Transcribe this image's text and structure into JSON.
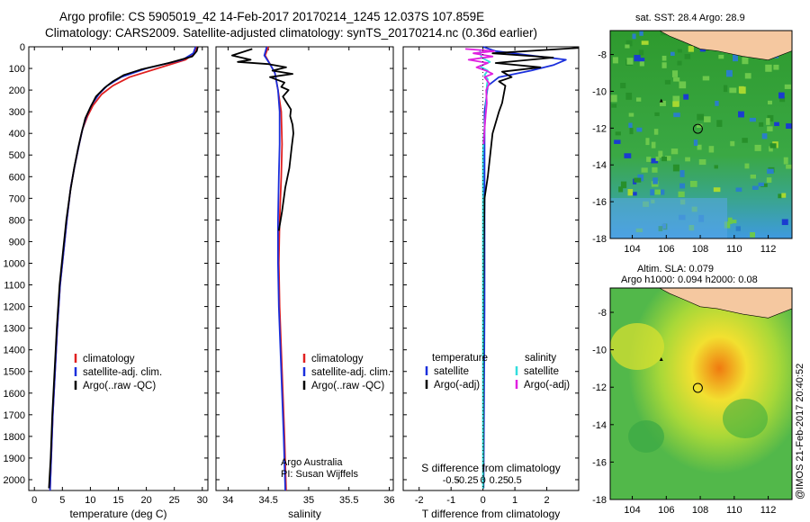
{
  "header": {
    "line1": "Argo profile: CS 5905019_42 14-Feb-2017 20170214_1245 12.037S 107.859E",
    "line2": "Climatology: CARS2009. Satellite-adjusted climatology: synTS_20170214.nc (0.36d earlier)"
  },
  "footer_stamp": "@IMOS 21-Feb-2017 20:40:52",
  "colors": {
    "climatology": "#e02020",
    "satellite": "#1a2fdc",
    "argo": "#000000",
    "salinity_sat": "#33dddd",
    "salinity_argo": "#e020e0",
    "sea": "#3fae3f",
    "land": "#f5c8a0"
  },
  "annotations": {
    "float_owner": "Argo Australia",
    "pi": "PI: Susan Wijffels"
  },
  "maps": {
    "sst": {
      "title": "sat. SST: 28.4 Argo: 28.9",
      "xticks": [
        "104",
        "106",
        "108",
        "110",
        "112"
      ],
      "yticks": [
        "-8",
        "-10",
        "-12",
        "-14",
        "-16",
        "-18"
      ]
    },
    "sla": {
      "title1": "Altim. SLA: 0.079",
      "title2": "Argo h1000: 0.094 h2000: 0.08",
      "xticks": [
        "104",
        "106",
        "108",
        "110",
        "112"
      ],
      "yticks": [
        "-8",
        "-10",
        "-12",
        "-14",
        "-16",
        "-18"
      ]
    }
  },
  "chart_data": [
    {
      "type": "line",
      "panel": "temperature",
      "xlabel": "temperature (deg C)",
      "xlim": [
        -1,
        31
      ],
      "ylim": [
        2050,
        0
      ],
      "xticks": [
        "0",
        "5",
        "10",
        "15",
        "20",
        "25",
        "30"
      ],
      "yticks": [
        "0",
        "100",
        "200",
        "300",
        "400",
        "500",
        "600",
        "700",
        "800",
        "900",
        "1000",
        "1100",
        "1200",
        "1300",
        "1400",
        "1500",
        "1600",
        "1700",
        "1800",
        "1900",
        "2000"
      ],
      "legend": [
        "climatology",
        "satellite-adj. clim.",
        "Argo(..raw -QC)"
      ],
      "series": [
        {
          "name": "climatology",
          "color": "#e02020",
          "points": [
            [
              29,
              0
            ],
            [
              28.6,
              30
            ],
            [
              27,
              60
            ],
            [
              22,
              100
            ],
            [
              17,
              140
            ],
            [
              14,
              180
            ],
            [
              12,
              220
            ],
            [
              10.5,
              270
            ],
            [
              9.5,
              320
            ],
            [
              8.6,
              380
            ],
            [
              8,
              450
            ],
            [
              7.2,
              550
            ],
            [
              6.5,
              650
            ],
            [
              5.8,
              800
            ],
            [
              5.2,
              950
            ],
            [
              4.6,
              1100
            ],
            [
              4.1,
              1300
            ],
            [
              3.7,
              1500
            ],
            [
              3.3,
              1700
            ],
            [
              3,
              1900
            ],
            [
              2.8,
              2050
            ]
          ]
        },
        {
          "name": "satellite-adj. clim.",
          "color": "#1a2fdc",
          "points": [
            [
              28.8,
              0
            ],
            [
              28.4,
              30
            ],
            [
              26.5,
              60
            ],
            [
              20,
              100
            ],
            [
              15.5,
              140
            ],
            [
              13,
              180
            ],
            [
              11.5,
              220
            ],
            [
              10.2,
              270
            ],
            [
              9.3,
              320
            ],
            [
              8.6,
              380
            ],
            [
              8,
              450
            ],
            [
              7.2,
              550
            ],
            [
              6.5,
              650
            ],
            [
              5.8,
              800
            ],
            [
              5.2,
              950
            ],
            [
              4.6,
              1100
            ],
            [
              4.1,
              1300
            ],
            [
              3.7,
              1500
            ],
            [
              3.3,
              1700
            ],
            [
              3,
              1900
            ],
            [
              2.8,
              2050
            ]
          ]
        },
        {
          "name": "Argo(..raw -QC)",
          "color": "#000000",
          "points": [
            [
              29.2,
              0
            ],
            [
              29,
              20
            ],
            [
              28.2,
              45
            ],
            [
              24,
              75
            ],
            [
              19,
              105
            ],
            [
              16,
              130
            ],
            [
              14,
              160
            ],
            [
              12.5,
              190
            ],
            [
              11,
              230
            ],
            [
              10,
              280
            ],
            [
              9.1,
              330
            ],
            [
              8.4,
              400
            ],
            [
              7.8,
              470
            ],
            [
              7.1,
              560
            ],
            [
              6.4,
              670
            ],
            [
              5.7,
              800
            ],
            [
              5.1,
              950
            ],
            [
              4.5,
              1100
            ],
            [
              4,
              1300
            ],
            [
              3.6,
              1500
            ],
            [
              3.2,
              1700
            ],
            [
              2.9,
              1900
            ],
            [
              2.6,
              2040
            ]
          ]
        }
      ]
    },
    {
      "type": "line",
      "panel": "salinity",
      "xlabel": "salinity",
      "xlim": [
        33.85,
        36.05
      ],
      "ylim": [
        2050,
        0
      ],
      "xticks": [
        "34",
        "34.5",
        "35",
        "35.5",
        "36"
      ],
      "legend": [
        "climatology",
        "satellite-adj. clim.",
        "Argo(..raw -QC)"
      ],
      "series": [
        {
          "name": "climatology",
          "color": "#e02020",
          "points": [
            [
              34.5,
              0
            ],
            [
              34.46,
              40
            ],
            [
              34.52,
              80
            ],
            [
              34.58,
              120
            ],
            [
              34.62,
              200
            ],
            [
              34.66,
              300
            ],
            [
              34.67,
              450
            ],
            [
              34.66,
              600
            ],
            [
              34.64,
              800
            ],
            [
              34.63,
              1000
            ],
            [
              34.64,
              1200
            ],
            [
              34.66,
              1400
            ],
            [
              34.68,
              1600
            ],
            [
              34.7,
              1800
            ],
            [
              34.72,
              2050
            ]
          ]
        },
        {
          "name": "satellite-adj. clim.",
          "color": "#1a2fdc",
          "points": [
            [
              34.48,
              0
            ],
            [
              34.45,
              40
            ],
            [
              34.52,
              80
            ],
            [
              34.58,
              120
            ],
            [
              34.62,
              200
            ],
            [
              34.64,
              300
            ],
            [
              34.64,
              450
            ],
            [
              34.63,
              600
            ],
            [
              34.62,
              800
            ],
            [
              34.62,
              1000
            ],
            [
              34.63,
              1200
            ],
            [
              34.65,
              1400
            ],
            [
              34.67,
              1600
            ],
            [
              34.69,
              1800
            ],
            [
              34.71,
              2050
            ]
          ]
        },
        {
          "name": "Argo(..raw -QC)",
          "color": "#000000",
          "points": [
            [
              34.3,
              10
            ],
            [
              34.05,
              40
            ],
            [
              34.28,
              60
            ],
            [
              34.12,
              70
            ],
            [
              34.5,
              80
            ],
            [
              34.72,
              95
            ],
            [
              34.55,
              110
            ],
            [
              34.8,
              125
            ],
            [
              34.52,
              140
            ],
            [
              34.7,
              165
            ],
            [
              34.66,
              185
            ],
            [
              34.75,
              200
            ],
            [
              34.68,
              230
            ],
            [
              34.73,
              260
            ],
            [
              34.78,
              290
            ],
            [
              34.77,
              320
            ],
            [
              34.8,
              360
            ],
            [
              34.81,
              400
            ],
            [
              34.79,
              460
            ],
            [
              34.76,
              560
            ],
            [
              34.71,
              650
            ],
            [
              34.67,
              760
            ],
            [
              34.63,
              850
            ]
          ]
        }
      ]
    },
    {
      "type": "line",
      "panel": "difference",
      "xlabel": "T difference from climatology",
      "xlabel_top": "S difference from climatology",
      "xlim": [
        -2.5,
        3
      ],
      "ylim": [
        2050,
        0
      ],
      "xticks": [
        "-2",
        "-1",
        "0",
        "1",
        "2"
      ],
      "xticks_top": [
        "-0.5",
        "-0.25",
        "0",
        "0.25",
        "0.5"
      ],
      "legend_temperature": {
        "heading": "temperature",
        "items": [
          "satellite",
          "Argo(-adj)"
        ]
      },
      "legend_salinity": {
        "heading": "salinity",
        "items": [
          "satellite",
          "Argo(-adj)"
        ]
      },
      "series": [
        {
          "name": "temperature satellite",
          "color": "#1a2fdc",
          "points": [
            [
              0,
              0
            ],
            [
              0.4,
              20
            ],
            [
              1.5,
              40
            ],
            [
              2.6,
              60
            ],
            [
              2.2,
              85
            ],
            [
              1.5,
              110
            ],
            [
              0.5,
              140
            ],
            [
              0.15,
              180
            ],
            [
              0.05,
              300
            ],
            [
              0.05,
              700
            ],
            [
              0.05,
              1200
            ],
            [
              0.02,
              2040
            ]
          ]
        },
        {
          "name": "temperature Argo(-adj)",
          "color": "#000000",
          "points": [
            [
              3,
              5
            ],
            [
              0.3,
              30
            ],
            [
              2.2,
              50
            ],
            [
              0.4,
              75
            ],
            [
              1.8,
              95
            ],
            [
              0.6,
              115
            ],
            [
              0.9,
              140
            ],
            [
              0.5,
              160
            ],
            [
              0.7,
              180
            ],
            [
              0.6,
              260
            ],
            [
              0.5,
              300
            ],
            [
              0.3,
              400
            ],
            [
              0.15,
              600
            ],
            [
              0.05,
              700
            ],
            [
              0.03,
              900
            ],
            [
              0.01,
              1200
            ],
            [
              0.01,
              2040
            ]
          ]
        },
        {
          "name": "salinity satellite",
          "color": "#33dddd",
          "points": [
            [
              -0.1,
              15
            ],
            [
              -0.05,
              50
            ],
            [
              0.22,
              70
            ],
            [
              -0.1,
              90
            ],
            [
              0.15,
              110
            ],
            [
              0.05,
              130
            ],
            [
              0.15,
              150
            ],
            [
              0.12,
              180
            ],
            [
              0.1,
              260
            ],
            [
              0.08,
              320
            ],
            [
              0.02,
              420
            ],
            [
              0,
              500
            ],
            [
              0,
              2040
            ]
          ]
        },
        {
          "name": "salinity Argo(-adj)",
          "color": "#e020e0",
          "points": [
            [
              -0.55,
              10
            ],
            [
              0.35,
              20
            ],
            [
              -0.3,
              30
            ],
            [
              0.3,
              45
            ],
            [
              -0.45,
              60
            ],
            [
              0.15,
              75
            ],
            [
              -0.2,
              95
            ],
            [
              0.1,
              110
            ],
            [
              0.3,
              125
            ],
            [
              0.05,
              140
            ],
            [
              0.2,
              170
            ],
            [
              0.1,
              200
            ],
            [
              0.12,
              260
            ],
            [
              0.08,
              320
            ],
            [
              0.05,
              380
            ],
            [
              0.02,
              450
            ]
          ]
        }
      ]
    }
  ]
}
